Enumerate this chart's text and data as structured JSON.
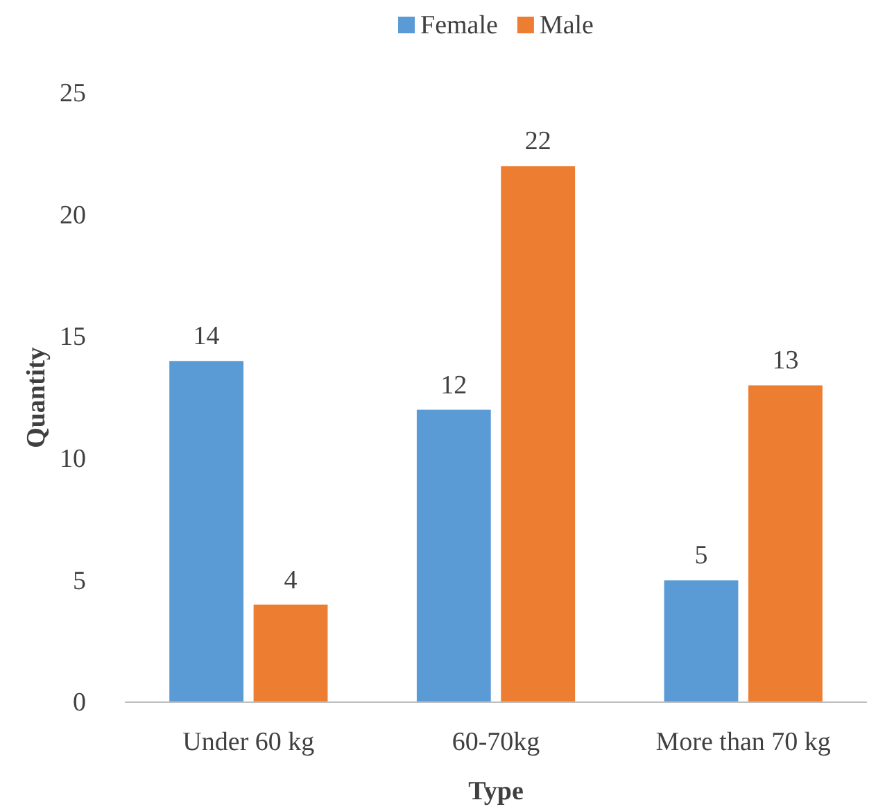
{
  "chart_data": {
    "type": "bar",
    "xlabel": "Type",
    "ylabel": "Quantity",
    "categories": [
      "Under 60 kg",
      "60-70kg",
      "More than 70 kg"
    ],
    "series": [
      {
        "name": "Female",
        "color": "#5b9bd5",
        "values": [
          14,
          12,
          5
        ]
      },
      {
        "name": "Male",
        "color": "#ed7d31",
        "values": [
          4,
          22,
          13
        ]
      }
    ],
    "ylim": [
      0,
      25
    ],
    "yticks": [
      0,
      5,
      10,
      15,
      20,
      25
    ],
    "grid": false,
    "legend": "top",
    "data_labels": true
  }
}
